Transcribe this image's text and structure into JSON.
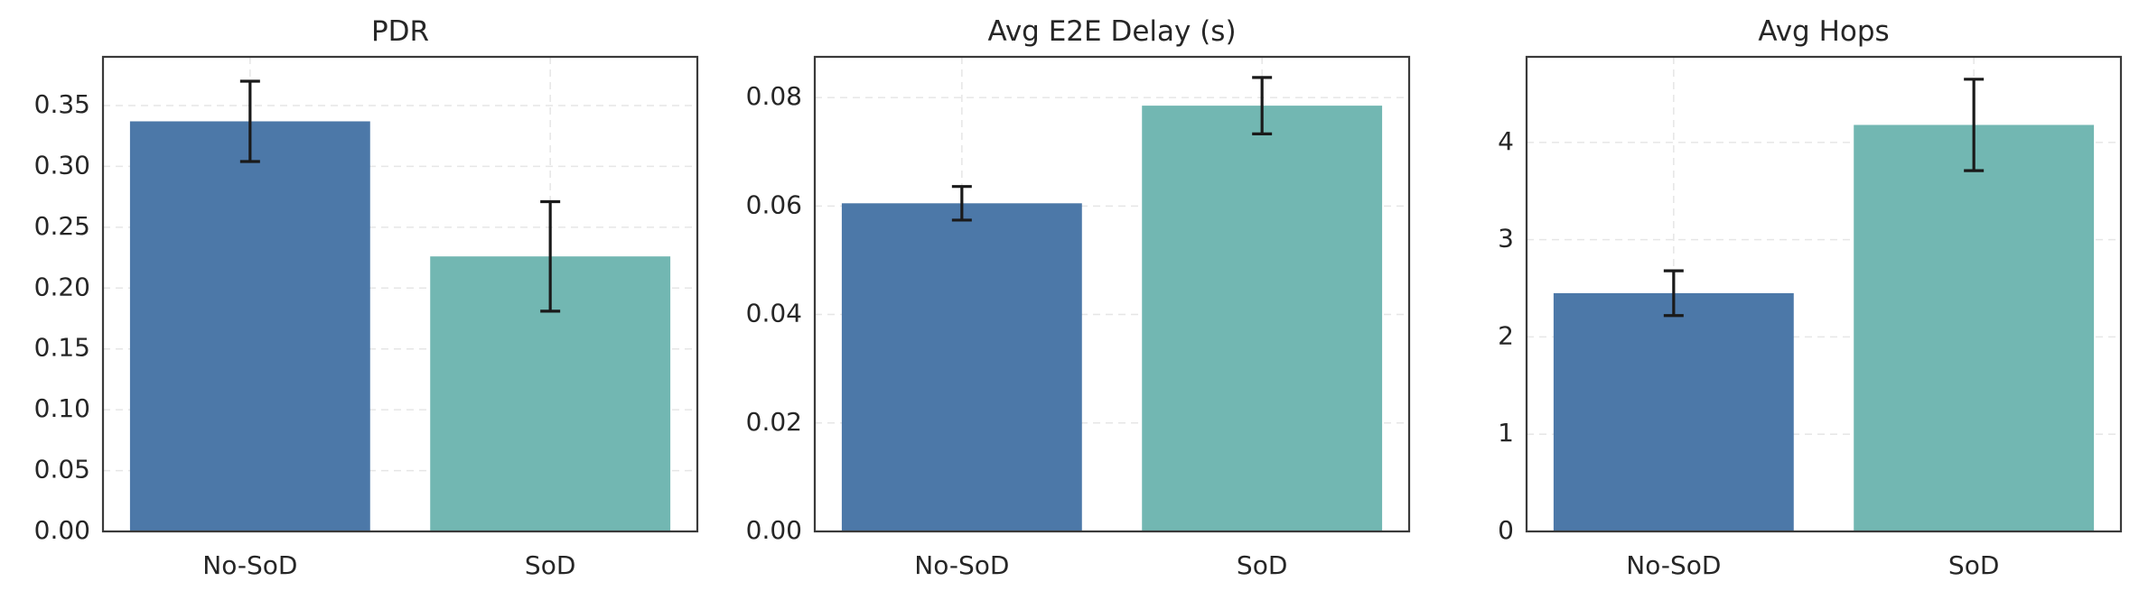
{
  "chart_data": [
    {
      "type": "bar",
      "title": "PDR",
      "categories": [
        "No-SoD",
        "SoD"
      ],
      "values": [
        0.337,
        0.226
      ],
      "errors": [
        0.033,
        0.045
      ],
      "ylim": [
        0,
        0.39
      ],
      "yticks": [
        0.0,
        0.05,
        0.1,
        0.15,
        0.2,
        0.25,
        0.3,
        0.35
      ],
      "ytick_labels": [
        "0.00",
        "0.05",
        "0.10",
        "0.15",
        "0.20",
        "0.25",
        "0.30",
        "0.35"
      ],
      "xlabel": "",
      "ylabel": "",
      "grid": true,
      "colors": [
        "#4c78a8",
        "#72b7b2"
      ]
    },
    {
      "type": "bar",
      "title": "Avg E2E Delay (s)",
      "categories": [
        "No-SoD",
        "SoD"
      ],
      "values": [
        0.0605,
        0.0785
      ],
      "errors": [
        0.0031,
        0.0052
      ],
      "ylim": [
        0,
        0.0875
      ],
      "yticks": [
        0.0,
        0.02,
        0.04,
        0.06,
        0.08
      ],
      "ytick_labels": [
        "0.00",
        "0.02",
        "0.04",
        "0.06",
        "0.08"
      ],
      "xlabel": "",
      "ylabel": "",
      "grid": true,
      "colors": [
        "#4c78a8",
        "#72b7b2"
      ]
    },
    {
      "type": "bar",
      "title": "Avg Hops",
      "categories": [
        "No-SoD",
        "SoD"
      ],
      "values": [
        2.45,
        4.18
      ],
      "errors": [
        0.23,
        0.47
      ],
      "ylim": [
        0,
        4.88
      ],
      "yticks": [
        0,
        1,
        2,
        3,
        4
      ],
      "ytick_labels": [
        "0",
        "1",
        "2",
        "3",
        "4"
      ],
      "xlabel": "",
      "ylabel": "",
      "grid": true,
      "colors": [
        "#4c78a8",
        "#72b7b2"
      ]
    }
  ]
}
